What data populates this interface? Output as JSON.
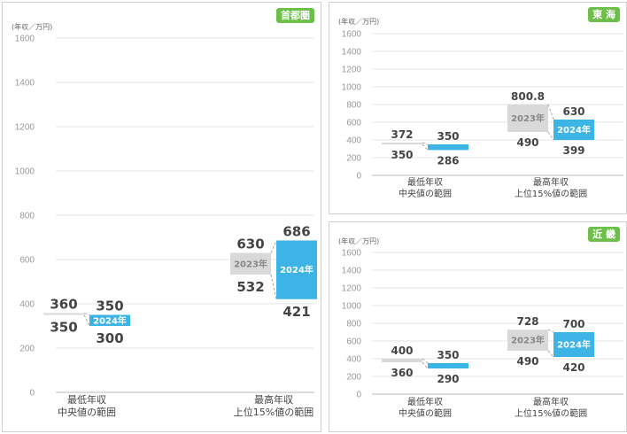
{
  "unit_label": "(年収／万円)",
  "colors": {
    "current": "#3cb4e5",
    "previous": "#d9d9d9",
    "badge": "#6cc04a",
    "connector": "#aaaaaa",
    "axis_text": "#999999",
    "value_text": "#444444"
  },
  "chart_data": [
    {
      "type": "bar",
      "region": "首都圏",
      "ylim": [
        0,
        1600
      ],
      "yticks": [
        0,
        200,
        400,
        600,
        800,
        1000,
        1200,
        1400,
        1600
      ],
      "categories": [
        {
          "label_lines": [
            "最低年収",
            "中央値の範囲"
          ],
          "prev_year": "",
          "curr_year": "2024年",
          "prev_range": [
            350,
            360
          ],
          "curr_range": [
            300,
            350
          ]
        },
        {
          "label_lines": [
            "最高年収",
            "上位15%値の範囲"
          ],
          "prev_year": "2023年",
          "curr_year": "2024年",
          "prev_range": [
            532,
            630
          ],
          "curr_range": [
            421,
            686
          ]
        }
      ]
    },
    {
      "type": "bar",
      "region": "東 海",
      "ylim": [
        0,
        1600
      ],
      "yticks": [
        0,
        200,
        400,
        600,
        800,
        1000,
        1200,
        1400,
        1600
      ],
      "categories": [
        {
          "label_lines": [
            "最低年収",
            "中央値の範囲"
          ],
          "prev_year": "",
          "curr_year": "",
          "prev_range": [
            350,
            372
          ],
          "curr_range": [
            286,
            350
          ]
        },
        {
          "label_lines": [
            "最高年収",
            "上位15%値の範囲"
          ],
          "prev_year": "2023年",
          "curr_year": "2024年",
          "prev_range": [
            490,
            800.8
          ],
          "curr_range": [
            399,
            630
          ]
        }
      ]
    },
    {
      "type": "bar",
      "region": "近 畿",
      "ylim": [
        0,
        1600
      ],
      "yticks": [
        0,
        200,
        400,
        600,
        800,
        1000,
        1200,
        1400,
        1600
      ],
      "categories": [
        {
          "label_lines": [
            "最低年収",
            "中央値の範囲"
          ],
          "prev_year": "",
          "curr_year": "",
          "prev_range": [
            360,
            400
          ],
          "curr_range": [
            290,
            350
          ]
        },
        {
          "label_lines": [
            "最高年収",
            "上位15%値の範囲"
          ],
          "prev_year": "2023年",
          "curr_year": "2024年",
          "prev_range": [
            490,
            728
          ],
          "curr_range": [
            420,
            700
          ]
        }
      ]
    }
  ]
}
